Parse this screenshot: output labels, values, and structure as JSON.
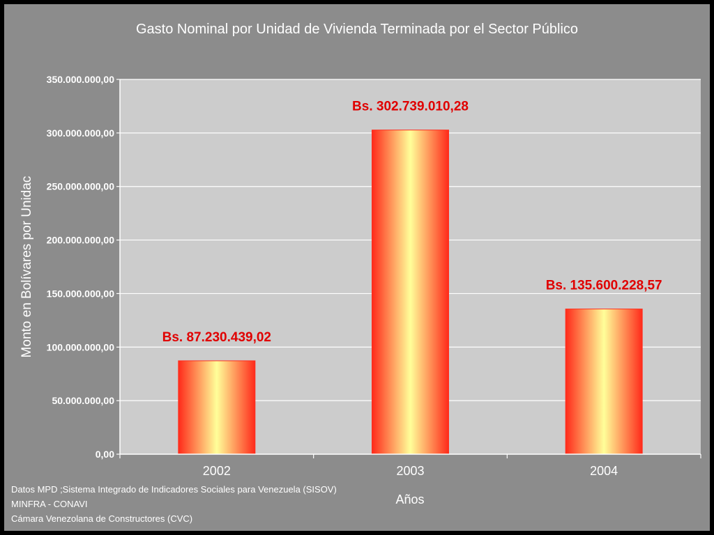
{
  "chart_data": {
    "type": "bar",
    "title": "Gasto Nominal por Unidad de Vivienda Terminada por el Sector Público",
    "xlabel": "Años",
    "ylabel": "Monto en Bolívares por Unidac",
    "categories": [
      "2002",
      "2003",
      "2004"
    ],
    "values": [
      87230439.02,
      302739010.28,
      135600228.57
    ],
    "data_labels": [
      "Bs. 87.230.439,02",
      "Bs. 302.739.010,28",
      "Bs. 135.600.228,57"
    ],
    "ylim": [
      0,
      350000000
    ],
    "yticks": [
      0,
      50000000,
      100000000,
      150000000,
      200000000,
      250000000,
      300000000,
      350000000
    ],
    "ytick_labels": [
      "0,00",
      "50.000.000,00",
      "100.000.000,00",
      "150.000.000,00",
      "200.000.000,00",
      "250.000.000,00",
      "300.000.000,00",
      "350.000.000,00"
    ],
    "grid": true,
    "legend": "none"
  },
  "colors": {
    "background": "#8c8c8c",
    "plot_area": "#cccccc",
    "bar_edge": "#ff2a1a",
    "bar_center": "#ffff99",
    "data_label": "#e00000",
    "text": "#ffffff"
  },
  "source": {
    "line1": "Datos MPD ;Sistema Integrado de Indicadores Sociales para Venezuela (SISOV)",
    "line2": "MINFRA - CONAVI",
    "line3": "Cámara Venezolana de Constructores (CVC)"
  }
}
